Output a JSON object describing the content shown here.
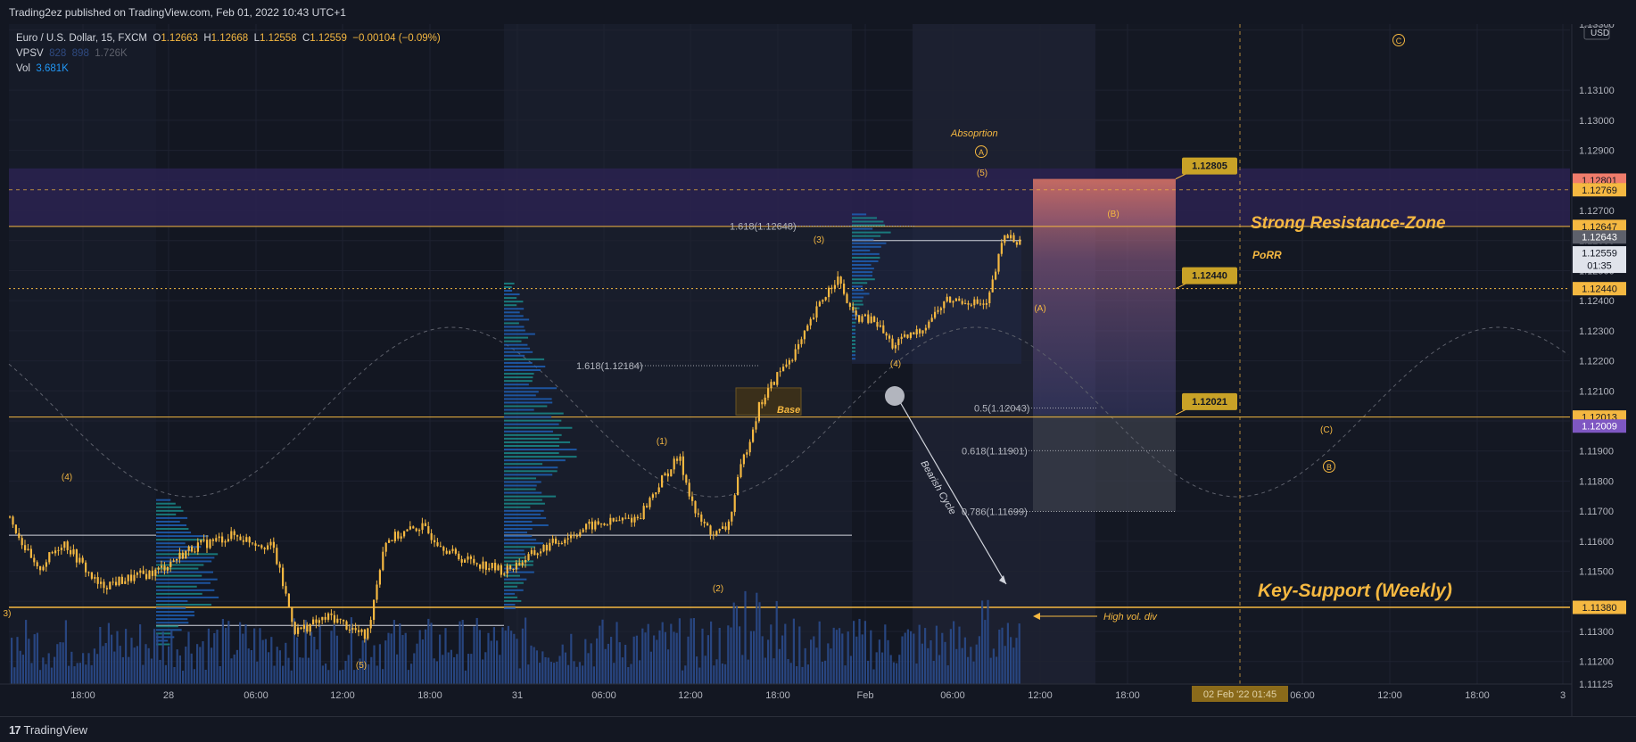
{
  "header": {
    "publisher": "Trading2ez published on TradingView.com, Feb 01, 2022 10:43 UTC+1"
  },
  "legend": {
    "symbol": "Euro / U.S. Dollar, 15, FXCM",
    "o_label": "O",
    "o": "1.12663",
    "h_label": "H",
    "h": "1.12668",
    "l_label": "L",
    "l": "1.12558",
    "c_label": "C",
    "c": "1.12559",
    "chg": "−0.00104 (−0.09%)",
    "vpsv_label": "VPSV",
    "vpsv_1": "828",
    "vpsv_2": "898",
    "vpsv_3": "1.726K",
    "vol_label": "Vol",
    "vol": "3.681K"
  },
  "footer": {
    "brand": "TradingView",
    "logo": "17"
  },
  "colors": {
    "bg": "#131722",
    "gold": "#f5b841",
    "grid": "#1f2330",
    "blue": "#2962ff",
    "resistance": "#3b2a6b",
    "target": "#ef7c6b"
  },
  "chart_data": {
    "type": "candlestick",
    "currency": "USD",
    "price_range": [
      1.11125,
      1.1332
    ],
    "y_ticks": [
      "1.13300",
      "1.13100",
      "1.13000",
      "1.12900",
      "1.12800",
      "1.12700",
      "1.12600",
      "1.12500",
      "1.12400",
      "1.12300",
      "1.12200",
      "1.12100",
      "1.11900",
      "1.11800",
      "1.11700",
      "1.11600",
      "1.11500",
      "1.11300",
      "1.11200",
      "1.11125"
    ],
    "x_ticks": [
      "18:00",
      "28",
      "06:00",
      "12:00",
      "18:00",
      "31",
      "06:00",
      "12:00",
      "18:00",
      "Feb",
      "06:00",
      "12:00",
      "18:00",
      "06:00",
      "12:00",
      "18:00",
      "3"
    ],
    "crosshair_time": "02 Feb '22  01:45",
    "price_tags": [
      {
        "label": "1.12801",
        "color": "#ef7c6b",
        "price": 1.12801
      },
      {
        "label": "1.12769",
        "color": "#f5b841",
        "price": 1.12769
      },
      {
        "label": "1.12647",
        "color": "#f5b841",
        "price": 1.12647
      },
      {
        "label": "1.12643",
        "color": "#5d606b",
        "price": 1.12612
      },
      {
        "label": "1.12559",
        "color": "#e0e3eb",
        "price": 1.12559,
        "sub": "01:35"
      },
      {
        "label": "1.12440",
        "color": "#f5b841",
        "price": 1.1244
      },
      {
        "label": "1.12013",
        "color": "#f5b841",
        "price": 1.12013
      },
      {
        "label": "1.12009",
        "color": "#7e57c2",
        "price": 1.11983
      }
    ],
    "callouts": [
      "1.12805",
      "1.12440",
      "1.12021"
    ],
    "fib_levels": [
      "1.618(1.12648)",
      "1.618(1.12184)",
      "0.5(1.12043)",
      "0.618(1.11901)",
      "0.786(1.11699)"
    ],
    "text_annotations": {
      "resistance": "Strong Resistance-Zone",
      "support": "Key-Support (Weekly)",
      "porr": "PoRR",
      "absorption": "Absoprtion",
      "base": "Base",
      "bearish": "Bearish Cycle",
      "high_vol": "High vol. div"
    },
    "wave_labels": [
      "(4)",
      "(5)",
      "(1)",
      "(2)",
      "(3)",
      "(4)",
      "(5)",
      "(A)",
      "(B)",
      "(C)",
      "A",
      "B",
      "C",
      "3)"
    ],
    "key_levels": {
      "resistance_top": 1.1284,
      "resistance_bottom": 1.12647,
      "support": 1.1138,
      "base_line": 1.12013,
      "porr": 1.1244,
      "dashed": 1.12769
    }
  }
}
